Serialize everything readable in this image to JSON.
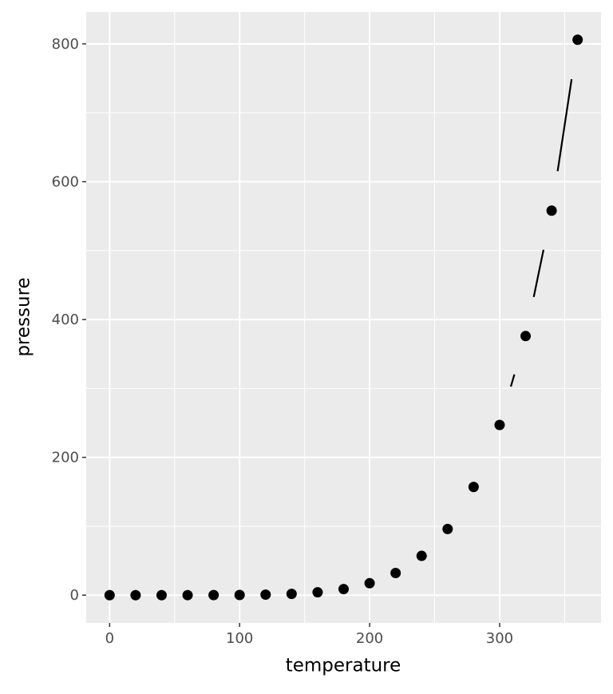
{
  "chart_data": {
    "type": "pointpath",
    "x_label": "temperature",
    "y_label": "pressure",
    "x": [
      0,
      20,
      40,
      60,
      80,
      100,
      120,
      140,
      160,
      180,
      200,
      220,
      240,
      260,
      280,
      300,
      320,
      340,
      360
    ],
    "values": [
      0.0002,
      0.0012,
      0.006,
      0.03,
      0.09,
      0.27,
      0.75,
      1.85,
      4.2,
      8.8,
      17.3,
      32.1,
      57,
      96,
      157,
      247,
      376,
      558,
      806
    ],
    "color": "#000000",
    "xlim": [
      -18,
      378
    ],
    "xticks": [
      0,
      100,
      200,
      300
    ],
    "minor_xticks": [
      50,
      150,
      250,
      350
    ],
    "ylim": [
      -40.3,
      846.3
    ],
    "yticks": [
      0,
      200,
      400,
      600,
      800
    ],
    "minor_yticks": [
      100,
      300,
      500,
      700
    ],
    "grid": true
  }
}
